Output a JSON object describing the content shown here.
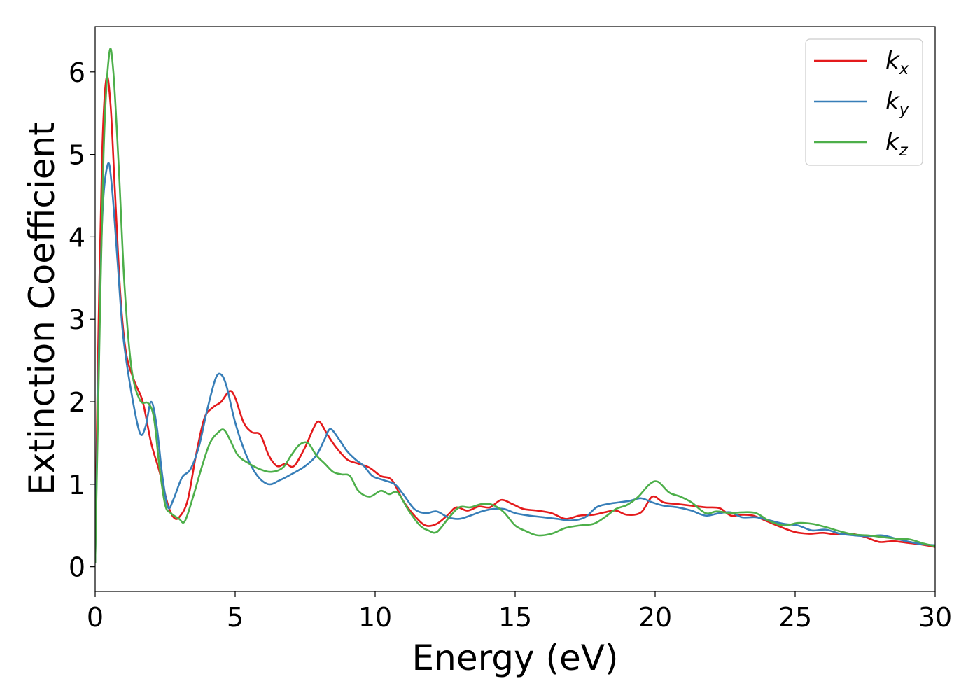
{
  "chart_data": {
    "type": "line",
    "title": "",
    "xlabel": "Energy (eV)",
    "ylabel": "Extinction Coefficient",
    "xlim": [
      0,
      30
    ],
    "ylim": [
      -0.3,
      6.55
    ],
    "xticks": [
      "0",
      "5",
      "10",
      "15",
      "20",
      "25",
      "30"
    ],
    "yticks": [
      "0",
      "1",
      "2",
      "3",
      "4",
      "5",
      "6"
    ],
    "grid": false,
    "legend_position": "top-right",
    "series": [
      {
        "name": "k",
        "subscript": "x",
        "color": "#e41a1c",
        "points": [
          [
            0,
            0.05
          ],
          [
            0.1,
            2.5
          ],
          [
            0.25,
            5.0
          ],
          [
            0.4,
            5.92
          ],
          [
            0.55,
            5.6
          ],
          [
            0.7,
            4.6
          ],
          [
            0.9,
            3.3
          ],
          [
            1.1,
            2.6
          ],
          [
            1.4,
            2.25
          ],
          [
            1.7,
            2.0
          ],
          [
            2.0,
            1.5
          ],
          [
            2.3,
            1.15
          ],
          [
            2.6,
            0.75
          ],
          [
            2.8,
            0.6
          ],
          [
            3.0,
            0.6
          ],
          [
            3.3,
            0.8
          ],
          [
            3.6,
            1.35
          ],
          [
            3.9,
            1.8
          ],
          [
            4.2,
            1.93
          ],
          [
            4.5,
            2.0
          ],
          [
            4.8,
            2.13
          ],
          [
            5.0,
            2.05
          ],
          [
            5.3,
            1.75
          ],
          [
            5.6,
            1.63
          ],
          [
            5.9,
            1.6
          ],
          [
            6.2,
            1.35
          ],
          [
            6.5,
            1.22
          ],
          [
            6.8,
            1.25
          ],
          [
            7.1,
            1.22
          ],
          [
            7.5,
            1.45
          ],
          [
            7.8,
            1.68
          ],
          [
            8.0,
            1.76
          ],
          [
            8.3,
            1.6
          ],
          [
            8.6,
            1.45
          ],
          [
            9.0,
            1.3
          ],
          [
            9.4,
            1.25
          ],
          [
            9.8,
            1.2
          ],
          [
            10.2,
            1.1
          ],
          [
            10.6,
            1.05
          ],
          [
            11.0,
            0.8
          ],
          [
            11.4,
            0.62
          ],
          [
            11.8,
            0.5
          ],
          [
            12.2,
            0.52
          ],
          [
            12.6,
            0.63
          ],
          [
            12.9,
            0.72
          ],
          [
            13.3,
            0.68
          ],
          [
            13.7,
            0.73
          ],
          [
            14.1,
            0.72
          ],
          [
            14.5,
            0.81
          ],
          [
            14.9,
            0.76
          ],
          [
            15.3,
            0.7
          ],
          [
            15.8,
            0.68
          ],
          [
            16.3,
            0.65
          ],
          [
            16.8,
            0.58
          ],
          [
            17.3,
            0.62
          ],
          [
            17.8,
            0.63
          ],
          [
            18.2,
            0.66
          ],
          [
            18.6,
            0.68
          ],
          [
            19.0,
            0.63
          ],
          [
            19.5,
            0.66
          ],
          [
            19.9,
            0.85
          ],
          [
            20.3,
            0.78
          ],
          [
            20.8,
            0.76
          ],
          [
            21.3,
            0.74
          ],
          [
            21.8,
            0.72
          ],
          [
            22.3,
            0.71
          ],
          [
            22.7,
            0.62
          ],
          [
            23.1,
            0.63
          ],
          [
            23.5,
            0.62
          ],
          [
            24.0,
            0.55
          ],
          [
            24.5,
            0.48
          ],
          [
            25.0,
            0.42
          ],
          [
            25.5,
            0.4
          ],
          [
            26.0,
            0.41
          ],
          [
            26.5,
            0.39
          ],
          [
            27.0,
            0.4
          ],
          [
            27.5,
            0.36
          ],
          [
            28.0,
            0.3
          ],
          [
            28.5,
            0.31
          ],
          [
            29.0,
            0.29
          ],
          [
            29.5,
            0.27
          ],
          [
            30.0,
            0.24
          ]
        ]
      },
      {
        "name": "k",
        "subscript": "y",
        "color": "#377eb8",
        "points": [
          [
            0,
            0.05
          ],
          [
            0.1,
            2.0
          ],
          [
            0.25,
            4.2
          ],
          [
            0.45,
            4.88
          ],
          [
            0.6,
            4.6
          ],
          [
            0.8,
            3.7
          ],
          [
            1.0,
            2.8
          ],
          [
            1.3,
            2.1
          ],
          [
            1.6,
            1.62
          ],
          [
            1.8,
            1.7
          ],
          [
            2.0,
            2.0
          ],
          [
            2.2,
            1.7
          ],
          [
            2.4,
            1.1
          ],
          [
            2.6,
            0.72
          ],
          [
            2.8,
            0.82
          ],
          [
            3.1,
            1.08
          ],
          [
            3.4,
            1.18
          ],
          [
            3.7,
            1.45
          ],
          [
            4.0,
            1.9
          ],
          [
            4.3,
            2.28
          ],
          [
            4.5,
            2.33
          ],
          [
            4.7,
            2.18
          ],
          [
            5.0,
            1.75
          ],
          [
            5.4,
            1.35
          ],
          [
            5.8,
            1.1
          ],
          [
            6.2,
            1.0
          ],
          [
            6.6,
            1.05
          ],
          [
            7.0,
            1.12
          ],
          [
            7.5,
            1.22
          ],
          [
            7.9,
            1.35
          ],
          [
            8.2,
            1.55
          ],
          [
            8.4,
            1.67
          ],
          [
            8.7,
            1.55
          ],
          [
            9.0,
            1.4
          ],
          [
            9.3,
            1.3
          ],
          [
            9.6,
            1.22
          ],
          [
            9.9,
            1.1
          ],
          [
            10.3,
            1.05
          ],
          [
            10.7,
            1.0
          ],
          [
            11.0,
            0.88
          ],
          [
            11.4,
            0.7
          ],
          [
            11.8,
            0.65
          ],
          [
            12.2,
            0.67
          ],
          [
            12.6,
            0.6
          ],
          [
            13.0,
            0.58
          ],
          [
            13.4,
            0.62
          ],
          [
            13.8,
            0.67
          ],
          [
            14.2,
            0.7
          ],
          [
            14.6,
            0.7
          ],
          [
            15.0,
            0.65
          ],
          [
            15.5,
            0.62
          ],
          [
            16.0,
            0.6
          ],
          [
            16.5,
            0.58
          ],
          [
            17.0,
            0.56
          ],
          [
            17.5,
            0.6
          ],
          [
            17.9,
            0.72
          ],
          [
            18.3,
            0.76
          ],
          [
            18.7,
            0.78
          ],
          [
            19.1,
            0.8
          ],
          [
            19.5,
            0.83
          ],
          [
            19.9,
            0.78
          ],
          [
            20.3,
            0.74
          ],
          [
            20.8,
            0.72
          ],
          [
            21.3,
            0.68
          ],
          [
            21.8,
            0.62
          ],
          [
            22.3,
            0.65
          ],
          [
            22.7,
            0.66
          ],
          [
            23.1,
            0.6
          ],
          [
            23.6,
            0.6
          ],
          [
            24.1,
            0.56
          ],
          [
            24.6,
            0.52
          ],
          [
            25.1,
            0.5
          ],
          [
            25.6,
            0.44
          ],
          [
            26.1,
            0.45
          ],
          [
            26.6,
            0.4
          ],
          [
            27.1,
            0.38
          ],
          [
            27.6,
            0.37
          ],
          [
            28.1,
            0.38
          ],
          [
            28.6,
            0.34
          ],
          [
            29.1,
            0.3
          ],
          [
            29.6,
            0.27
          ],
          [
            30.0,
            0.26
          ]
        ]
      },
      {
        "name": "k",
        "subscript": "z",
        "color": "#4daf4a",
        "points": [
          [
            0,
            0.05
          ],
          [
            0.1,
            1.8
          ],
          [
            0.3,
            5.0
          ],
          [
            0.5,
            6.21
          ],
          [
            0.65,
            6.0
          ],
          [
            0.85,
            4.8
          ],
          [
            1.05,
            3.4
          ],
          [
            1.3,
            2.4
          ],
          [
            1.6,
            2.02
          ],
          [
            1.9,
            1.98
          ],
          [
            2.1,
            1.8
          ],
          [
            2.3,
            1.2
          ],
          [
            2.5,
            0.75
          ],
          [
            2.7,
            0.65
          ],
          [
            3.0,
            0.58
          ],
          [
            3.2,
            0.55
          ],
          [
            3.5,
            0.85
          ],
          [
            3.8,
            1.2
          ],
          [
            4.1,
            1.5
          ],
          [
            4.4,
            1.63
          ],
          [
            4.6,
            1.66
          ],
          [
            4.8,
            1.55
          ],
          [
            5.1,
            1.35
          ],
          [
            5.5,
            1.25
          ],
          [
            5.9,
            1.18
          ],
          [
            6.3,
            1.15
          ],
          [
            6.7,
            1.2
          ],
          [
            7.0,
            1.35
          ],
          [
            7.3,
            1.48
          ],
          [
            7.6,
            1.5
          ],
          [
            7.9,
            1.35
          ],
          [
            8.2,
            1.25
          ],
          [
            8.5,
            1.15
          ],
          [
            8.8,
            1.12
          ],
          [
            9.1,
            1.1
          ],
          [
            9.4,
            0.92
          ],
          [
            9.8,
            0.85
          ],
          [
            10.2,
            0.92
          ],
          [
            10.5,
            0.88
          ],
          [
            10.8,
            0.9
          ],
          [
            11.2,
            0.68
          ],
          [
            11.6,
            0.5
          ],
          [
            11.9,
            0.44
          ],
          [
            12.2,
            0.42
          ],
          [
            12.6,
            0.58
          ],
          [
            13.0,
            0.72
          ],
          [
            13.4,
            0.72
          ],
          [
            13.8,
            0.76
          ],
          [
            14.2,
            0.75
          ],
          [
            14.6,
            0.66
          ],
          [
            15.0,
            0.5
          ],
          [
            15.4,
            0.43
          ],
          [
            15.8,
            0.38
          ],
          [
            16.3,
            0.4
          ],
          [
            16.8,
            0.47
          ],
          [
            17.3,
            0.5
          ],
          [
            17.8,
            0.52
          ],
          [
            18.2,
            0.6
          ],
          [
            18.6,
            0.7
          ],
          [
            19.0,
            0.75
          ],
          [
            19.4,
            0.85
          ],
          [
            19.8,
            1.0
          ],
          [
            20.1,
            1.03
          ],
          [
            20.5,
            0.9
          ],
          [
            20.9,
            0.85
          ],
          [
            21.3,
            0.78
          ],
          [
            21.8,
            0.65
          ],
          [
            22.2,
            0.67
          ],
          [
            22.7,
            0.65
          ],
          [
            23.1,
            0.66
          ],
          [
            23.6,
            0.65
          ],
          [
            24.1,
            0.55
          ],
          [
            24.6,
            0.5
          ],
          [
            25.1,
            0.53
          ],
          [
            25.6,
            0.52
          ],
          [
            26.1,
            0.48
          ],
          [
            26.6,
            0.43
          ],
          [
            27.1,
            0.39
          ],
          [
            27.6,
            0.38
          ],
          [
            28.1,
            0.36
          ],
          [
            28.6,
            0.34
          ],
          [
            29.1,
            0.33
          ],
          [
            29.6,
            0.28
          ],
          [
            30.0,
            0.25
          ]
        ]
      }
    ]
  }
}
